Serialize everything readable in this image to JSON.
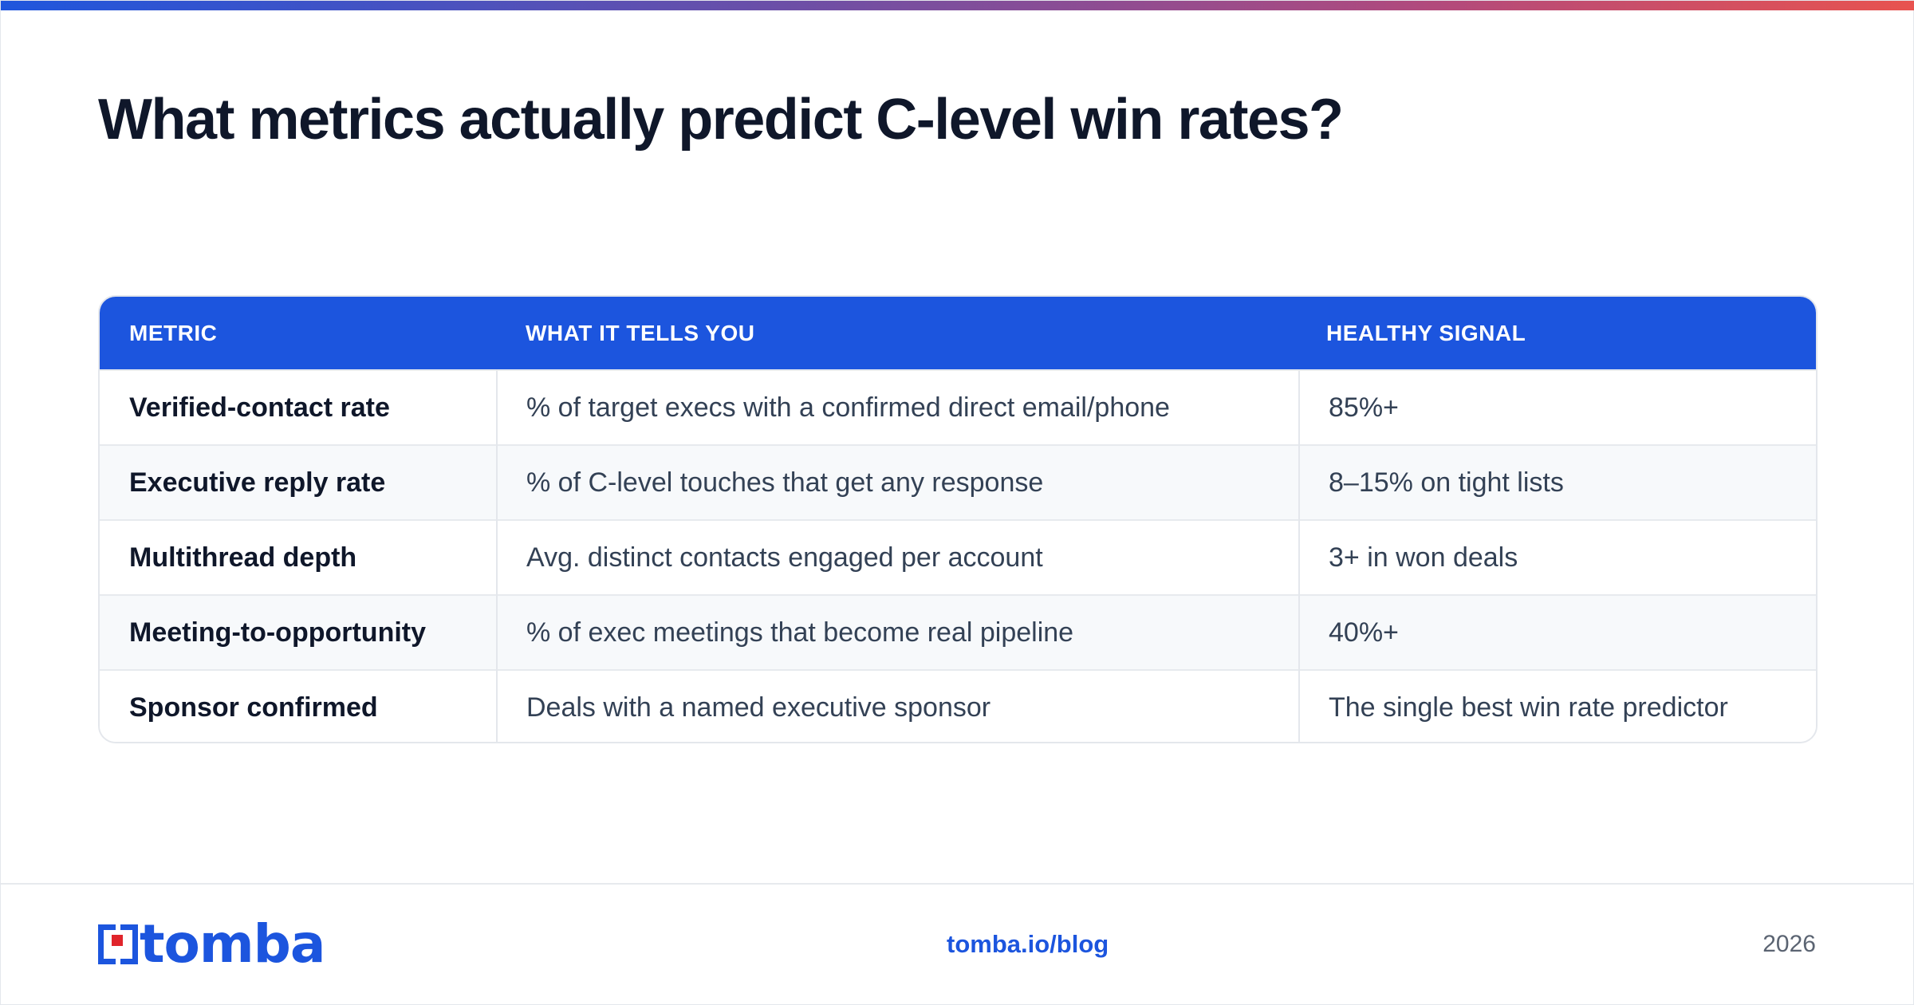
{
  "page": {
    "title": "What metrics actually predict C-level win rates?"
  },
  "table": {
    "headers": [
      "METRIC",
      "WHAT IT TELLS YOU",
      "HEALTHY SIGNAL"
    ],
    "rows": [
      {
        "metric": "Verified-contact rate",
        "description": "% of target execs with a confirmed direct email/phone",
        "signal": "85%+"
      },
      {
        "metric": "Executive reply rate",
        "description": "% of C-level touches that get any response",
        "signal": "8–15% on tight lists"
      },
      {
        "metric": "Multithread depth",
        "description": "Avg. distinct contacts engaged per account",
        "signal": "3+ in won deals"
      },
      {
        "metric": "Meeting-to-opportunity",
        "description": "% of exec meetings that become real pipeline",
        "signal": "40%+"
      },
      {
        "metric": "Sponsor confirmed",
        "description": "Deals with a named executive sponsor",
        "signal": "The single best win rate predictor"
      }
    ]
  },
  "footer": {
    "logo_text": "tomba",
    "link": "tomba.io/blog",
    "year": "2026"
  },
  "colors": {
    "brand_blue": "#1c55de",
    "logo_red": "#e0242b",
    "title": "#0f172a"
  },
  "icons": {
    "logo": "tomba-logo-icon"
  }
}
